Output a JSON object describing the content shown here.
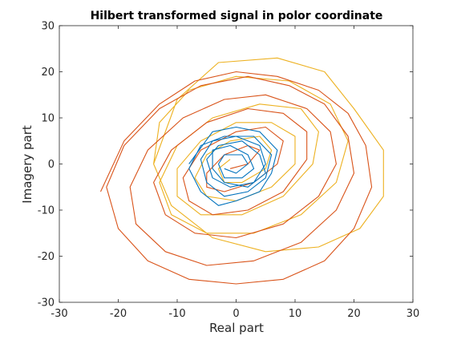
{
  "chart_data": {
    "type": "line",
    "title": "Hilbert transformed signal in polor coordinate",
    "xlabel": "Real part",
    "ylabel": "Imagery part",
    "xlim": [
      -30,
      30
    ],
    "ylim": [
      -30,
      30
    ],
    "xticks": [
      -30,
      -20,
      -10,
      0,
      10,
      20,
      30
    ],
    "yticks": [
      -30,
      -20,
      -10,
      0,
      10,
      20,
      30
    ],
    "grid": false,
    "legend": "none",
    "series": [
      {
        "color": "#0072BD",
        "x": [
          -8,
          -4,
          0,
          4,
          7,
          6,
          4,
          0,
          -3,
          -6,
          -8,
          -6,
          -2,
          3,
          6,
          5,
          2,
          -2,
          -5,
          -6,
          -4,
          0,
          4,
          5,
          3,
          -1,
          -4,
          -5,
          -3,
          1,
          4,
          5,
          2,
          -2,
          -4,
          -4,
          -1,
          2,
          3,
          1,
          -2,
          -3,
          -2,
          1,
          2,
          0,
          -2
        ],
        "y": [
          0,
          7,
          8,
          7,
          3,
          -2,
          -6,
          -8,
          -9,
          -6,
          -1,
          4,
          6,
          6,
          2,
          -3,
          -6,
          -7,
          -4,
          1,
          5,
          6,
          4,
          0,
          -4,
          -5,
          -3,
          1,
          4,
          5,
          2,
          -2,
          -5,
          -4,
          -1,
          3,
          4,
          2,
          -1,
          -3,
          -3,
          0,
          2,
          2,
          0,
          -2,
          -1
        ]
      },
      {
        "color": "#D95319",
        "x": [
          -23,
          -19,
          -13,
          -7,
          0,
          7,
          14,
          19,
          22,
          23,
          20,
          15,
          8,
          0,
          -8,
          -15,
          -20,
          -22,
          -19,
          -13,
          -6,
          2,
          9,
          15,
          19,
          20,
          17,
          11,
          3,
          -5,
          -12,
          -17,
          -18,
          -15,
          -9,
          -2,
          5,
          12,
          16,
          17,
          14,
          8,
          0,
          -7,
          -12,
          -14,
          -11,
          -5,
          2,
          8,
          12,
          12,
          8,
          2,
          -4,
          -8,
          -9,
          -6,
          0,
          5,
          8,
          7,
          3,
          -2,
          -5,
          -5,
          -2,
          2,
          4,
          2,
          -1
        ],
        "y": [
          -6,
          5,
          13,
          18,
          20,
          19,
          16,
          11,
          4,
          -5,
          -14,
          -21,
          -25,
          -26,
          -25,
          -21,
          -14,
          -5,
          4,
          12,
          17,
          19,
          17,
          13,
          6,
          -2,
          -10,
          -17,
          -21,
          -22,
          -19,
          -13,
          -5,
          3,
          10,
          14,
          15,
          12,
          7,
          0,
          -7,
          -13,
          -16,
          -15,
          -11,
          -4,
          3,
          9,
          12,
          11,
          7,
          1,
          -6,
          -10,
          -11,
          -8,
          -3,
          3,
          7,
          8,
          5,
          0,
          -4,
          -6,
          -5,
          -2,
          2,
          4,
          3,
          0,
          -1
        ]
      },
      {
        "color": "#EDB120",
        "x": [
          -14,
          -10,
          -3,
          7,
          15,
          20,
          25,
          25,
          21,
          14,
          5,
          -4,
          -11,
          -14,
          -13,
          -8,
          0,
          9,
          16,
          19,
          17,
          11,
          3,
          -5,
          -11,
          -13,
          -10,
          -4,
          4,
          11,
          14,
          13,
          8,
          1,
          -6,
          -10,
          -10,
          -6,
          0,
          6,
          10,
          10,
          6,
          0,
          -5,
          -7,
          -5,
          -1,
          4,
          6,
          5,
          1,
          -2,
          -3,
          -1
        ],
        "y": [
          0,
          14,
          22,
          23,
          20,
          12,
          3,
          -7,
          -14,
          -18,
          -19,
          -16,
          -9,
          0,
          9,
          16,
          19,
          18,
          13,
          5,
          -4,
          -11,
          -15,
          -15,
          -11,
          -4,
          4,
          10,
          13,
          12,
          7,
          0,
          -7,
          -11,
          -11,
          -7,
          -1,
          5,
          9,
          9,
          6,
          0,
          -5,
          -8,
          -7,
          -3,
          2,
          5,
          6,
          3,
          -1,
          -4,
          -4,
          -1,
          1
        ]
      }
    ]
  }
}
